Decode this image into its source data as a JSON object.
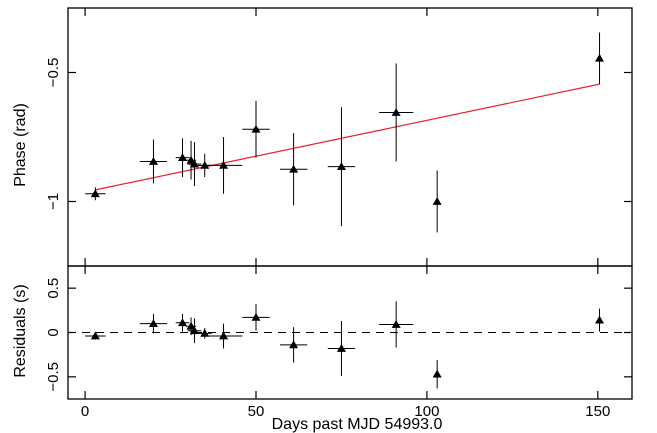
{
  "chart_data": [
    {
      "type": "scatter",
      "panel": "phase",
      "ylabel": "Phase (rad)",
      "xlim": [
        -5,
        160
      ],
      "ylim": [
        -1.25,
        -0.25
      ],
      "yticks": [
        -1,
        -0.5
      ],
      "ytick_labels": [
        "−1",
        "−0.5"
      ],
      "x": [
        3,
        20,
        28.5,
        31,
        32,
        35,
        40.5,
        50,
        61,
        75,
        91,
        103,
        150.5
      ],
      "xerr": [
        3,
        4,
        2,
        1.5,
        2,
        2,
        5.5,
        4,
        4,
        4,
        5,
        0,
        0
      ],
      "y": [
        -0.97,
        -0.845,
        -0.83,
        -0.84,
        -0.855,
        -0.86,
        -0.86,
        -0.72,
        -0.875,
        -0.865,
        -0.655,
        -1.0,
        -0.445
      ],
      "yerr": [
        0.025,
        0.085,
        0.075,
        0.075,
        0.085,
        0.045,
        0.11,
        0.11,
        0.14,
        0.23,
        0.19,
        0.12,
        0.1
      ],
      "fit_line": {
        "x": [
          3,
          150.5
        ],
        "y": [
          -0.955,
          -0.545
        ],
        "color": "#e8222b"
      }
    },
    {
      "type": "scatter",
      "panel": "residuals",
      "xlabel": "Days past MJD 54993.0",
      "ylabel": "Residuals (s)",
      "xlim": [
        -5,
        160
      ],
      "ylim": [
        -0.75,
        0.75
      ],
      "xticks": [
        0,
        50,
        100,
        150
      ],
      "xtick_labels": [
        "0",
        "50",
        "100",
        "150"
      ],
      "yticks": [
        -0.5,
        0,
        0.5
      ],
      "ytick_labels": [
        "−0.5",
        "0",
        "0.5"
      ],
      "x": [
        3,
        20,
        28.5,
        31,
        32,
        35,
        40.5,
        50,
        61,
        75,
        91,
        103,
        150.5
      ],
      "xerr": [
        3,
        4,
        2,
        1.5,
        2,
        2,
        5.5,
        4,
        4,
        4,
        5,
        0,
        0
      ],
      "y": [
        -0.04,
        0.1,
        0.11,
        0.07,
        0.02,
        -0.01,
        -0.04,
        0.17,
        -0.14,
        -0.18,
        0.09,
        -0.47,
        0.14
      ],
      "yerr": [
        0.04,
        0.11,
        0.1,
        0.1,
        0.14,
        0.06,
        0.14,
        0.15,
        0.2,
        0.31,
        0.26,
        0.16,
        0.13
      ],
      "zero_line": 0
    }
  ]
}
